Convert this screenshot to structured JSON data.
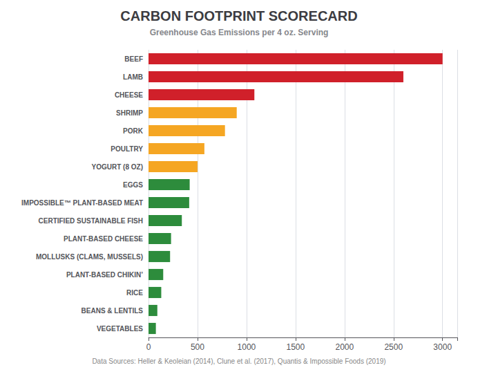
{
  "chart_data": {
    "type": "bar",
    "orientation": "horizontal",
    "title": "CARBON FOOTPRINT SCORECARD",
    "subtitle": "Greenhouse Gas Emissions per 4 oz. Serving",
    "annotations": [
      "Data Sources: Heller & Keoleian (2014), Clune et al. (2017), Quantis & Impossible Foods (2019)"
    ],
    "categories": [
      "BEEF",
      "LAMB",
      "CHEESE",
      "SHRIMP",
      "PORK",
      "POULTRY",
      "YOGURT (8 OZ)",
      "EGGS",
      "IMPOSSIBLE™ PLANT-BASED MEAT",
      "CERTIFIED SUSTAINABLE FISH",
      "PLANT-BASED CHEESE",
      "MOLLUSKS (CLAMS, MUSSELS)",
      "PLANT-BASED CHIKIN’",
      "RICE",
      "BEANS & LENTILS",
      "VEGETABLES"
    ],
    "values": [
      3000,
      2600,
      1080,
      900,
      780,
      570,
      500,
      420,
      415,
      340,
      230,
      220,
      150,
      130,
      90,
      75
    ],
    "colors": [
      "#d0202a",
      "#d0202a",
      "#d0202a",
      "#f5a623",
      "#f5a623",
      "#f5a623",
      "#f5a623",
      "#2d8c3c",
      "#2d8c3c",
      "#2d8c3c",
      "#2d8c3c",
      "#2d8c3c",
      "#2d8c3c",
      "#2d8c3c",
      "#2d8c3c",
      "#2d8c3c"
    ],
    "xlim": [
      0,
      3150
    ],
    "xticks": [
      0,
      500,
      1000,
      1500,
      2000,
      2500,
      3000
    ],
    "grid": true
  }
}
